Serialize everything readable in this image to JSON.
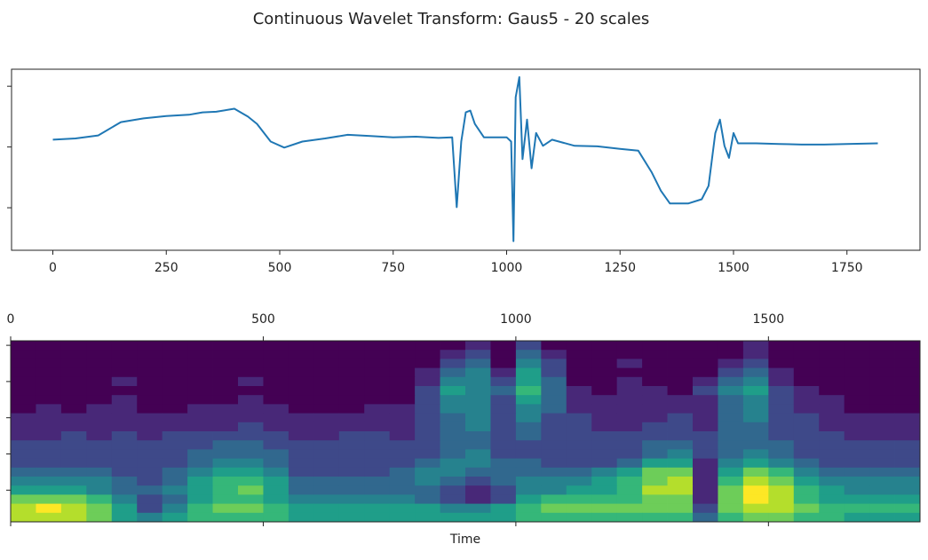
{
  "chart_data": [
    {
      "type": "line",
      "title": "Continuous Wavelet Transform: Gaus5 - 20 scales",
      "xlim": [
        -91,
        1911
      ],
      "xticks": [
        0,
        250,
        500,
        750,
        1000,
        1250,
        1500,
        1750
      ],
      "ylim": [
        -1.7,
        1.28
      ],
      "yticks": [
        -1,
        0,
        1
      ],
      "ytick_labels": false,
      "series": [
        {
          "color": "#1f77b4",
          "x": [
            0,
            50,
            100,
            150,
            200,
            250,
            300,
            330,
            360,
            400,
            430,
            450,
            480,
            510,
            550,
            600,
            650,
            700,
            750,
            800,
            850,
            880,
            890,
            900,
            910,
            920,
            930,
            950,
            1000,
            1010,
            1015,
            1020,
            1028,
            1035,
            1045,
            1055,
            1065,
            1080,
            1100,
            1150,
            1200,
            1250,
            1290,
            1320,
            1340,
            1360,
            1400,
            1430,
            1445,
            1460,
            1470,
            1480,
            1490,
            1500,
            1510,
            1550,
            1600,
            1650,
            1700,
            1750,
            1818
          ],
          "values": [
            0.12,
            0.14,
            0.19,
            0.41,
            0.47,
            0.51,
            0.53,
            0.57,
            0.58,
            0.63,
            0.5,
            0.38,
            0.09,
            -0.01,
            0.09,
            0.14,
            0.2,
            0.18,
            0.16,
            0.17,
            0.15,
            0.16,
            -0.99,
            0.09,
            0.57,
            0.6,
            0.38,
            0.16,
            0.16,
            0.09,
            -1.55,
            0.82,
            1.15,
            -0.2,
            0.45,
            -0.35,
            0.23,
            0.02,
            0.12,
            0.02,
            0.01,
            -0.03,
            -0.06,
            -0.42,
            -0.72,
            -0.93,
            -0.93,
            -0.86,
            -0.64,
            0.23,
            0.45,
            0.02,
            -0.18,
            0.23,
            0.06,
            0.06,
            0.05,
            0.04,
            0.04,
            0.05,
            0.06
          ]
        }
      ]
    },
    {
      "type": "heatmap",
      "xlabel": "Time",
      "xaxis": "top",
      "xlim": [
        0,
        1800
      ],
      "xticks": [
        0,
        500,
        1000,
        1500
      ],
      "ylim": [
        19.5,
        -0.5
      ],
      "yticks": [
        0,
        4,
        8,
        12,
        16
      ],
      "ytick_labels": false,
      "xbins": [
        0,
        50,
        100,
        150,
        200,
        250,
        300,
        350,
        400,
        450,
        500,
        550,
        600,
        650,
        700,
        750,
        800,
        850,
        900,
        950,
        1000,
        1050,
        1100,
        1150,
        1200,
        1250,
        1300,
        1350,
        1400,
        1450,
        1500,
        1550,
        1600,
        1650,
        1700,
        1750,
        1800
      ],
      "z": [
        [
          1,
          1,
          1,
          1,
          1,
          1,
          1,
          1,
          1,
          1,
          1,
          1,
          1,
          1,
          1,
          1,
          1,
          1,
          2,
          1,
          3,
          1,
          1,
          1,
          1,
          1,
          1,
          1,
          1,
          2,
          1,
          1,
          1,
          1,
          1,
          1
        ],
        [
          1,
          1,
          1,
          1,
          1,
          1,
          1,
          1,
          1,
          1,
          1,
          1,
          1,
          1,
          1,
          1,
          1,
          2,
          3,
          1,
          4,
          2,
          1,
          1,
          1,
          1,
          1,
          1,
          1,
          2,
          1,
          1,
          1,
          1,
          1,
          1
        ],
        [
          1,
          1,
          1,
          1,
          1,
          1,
          1,
          1,
          1,
          1,
          1,
          1,
          1,
          1,
          1,
          1,
          1,
          3,
          4,
          1,
          5,
          3,
          1,
          1,
          2,
          1,
          1,
          1,
          2,
          3,
          1,
          1,
          1,
          1,
          1,
          1
        ],
        [
          1,
          1,
          1,
          1,
          1,
          1,
          1,
          1,
          1,
          1,
          1,
          1,
          1,
          1,
          1,
          1,
          2,
          4,
          5,
          2,
          6,
          3,
          1,
          1,
          1,
          1,
          1,
          1,
          3,
          4,
          2,
          1,
          1,
          1,
          1,
          1
        ],
        [
          1,
          1,
          1,
          1,
          2,
          1,
          1,
          1,
          1,
          2,
          1,
          1,
          1,
          1,
          1,
          1,
          2,
          5,
          5,
          3,
          6,
          4,
          1,
          1,
          2,
          1,
          1,
          2,
          4,
          5,
          2,
          1,
          1,
          1,
          1,
          1
        ],
        [
          1,
          1,
          1,
          1,
          1,
          1,
          1,
          1,
          1,
          1,
          1,
          1,
          1,
          1,
          1,
          1,
          3,
          6,
          5,
          4,
          7,
          4,
          2,
          1,
          2,
          2,
          1,
          3,
          5,
          6,
          3,
          2,
          1,
          1,
          1,
          1
        ],
        [
          1,
          1,
          1,
          1,
          2,
          1,
          1,
          1,
          1,
          2,
          1,
          1,
          1,
          1,
          1,
          1,
          3,
          5,
          5,
          3,
          6,
          4,
          2,
          2,
          2,
          2,
          2,
          2,
          4,
          5,
          3,
          2,
          2,
          1,
          1,
          1
        ],
        [
          1,
          2,
          1,
          2,
          2,
          1,
          1,
          2,
          2,
          2,
          2,
          1,
          1,
          1,
          2,
          2,
          3,
          5,
          5,
          3,
          5,
          4,
          2,
          2,
          2,
          2,
          2,
          2,
          4,
          5,
          3,
          2,
          2,
          1,
          1,
          1
        ],
        [
          2,
          2,
          2,
          2,
          2,
          2,
          2,
          2,
          2,
          2,
          2,
          2,
          2,
          2,
          2,
          2,
          3,
          4,
          5,
          3,
          5,
          3,
          3,
          2,
          2,
          2,
          3,
          2,
          4,
          5,
          3,
          3,
          2,
          2,
          2,
          2
        ],
        [
          2,
          2,
          2,
          2,
          2,
          2,
          2,
          2,
          2,
          3,
          2,
          2,
          2,
          2,
          2,
          2,
          3,
          4,
          5,
          3,
          4,
          3,
          3,
          2,
          2,
          3,
          3,
          2,
          4,
          4,
          3,
          3,
          2,
          2,
          2,
          2
        ],
        [
          2,
          2,
          3,
          2,
          3,
          2,
          3,
          3,
          3,
          3,
          3,
          2,
          2,
          3,
          3,
          2,
          3,
          4,
          4,
          3,
          4,
          3,
          3,
          3,
          3,
          3,
          3,
          3,
          4,
          4,
          3,
          3,
          3,
          2,
          2,
          2
        ],
        [
          3,
          3,
          3,
          3,
          3,
          3,
          3,
          3,
          4,
          4,
          3,
          3,
          3,
          3,
          3,
          3,
          3,
          4,
          4,
          3,
          3,
          3,
          3,
          3,
          3,
          4,
          4,
          3,
          4,
          4,
          4,
          3,
          3,
          3,
          3,
          3
        ],
        [
          3,
          3,
          3,
          3,
          3,
          3,
          3,
          4,
          4,
          4,
          4,
          3,
          3,
          3,
          3,
          3,
          3,
          4,
          5,
          3,
          3,
          3,
          3,
          3,
          3,
          4,
          5,
          3,
          4,
          5,
          4,
          3,
          3,
          3,
          3,
          3
        ],
        [
          3,
          3,
          3,
          3,
          3,
          3,
          3,
          4,
          5,
          5,
          4,
          3,
          3,
          3,
          3,
          3,
          4,
          5,
          5,
          4,
          4,
          3,
          3,
          3,
          4,
          6,
          6,
          2,
          5,
          6,
          5,
          4,
          3,
          3,
          3,
          3
        ],
        [
          4,
          4,
          4,
          4,
          3,
          3,
          4,
          5,
          6,
          6,
          5,
          3,
          3,
          3,
          3,
          4,
          5,
          5,
          4,
          4,
          4,
          4,
          4,
          5,
          6,
          8,
          8,
          2,
          6,
          8,
          7,
          5,
          4,
          4,
          4,
          4
        ],
        [
          5,
          5,
          5,
          5,
          4,
          3,
          4,
          6,
          7,
          7,
          6,
          4,
          4,
          4,
          4,
          4,
          5,
          4,
          3,
          4,
          5,
          5,
          5,
          6,
          7,
          8,
          9,
          2,
          7,
          9,
          8,
          6,
          5,
          5,
          5,
          5
        ],
        [
          6,
          6,
          6,
          5,
          4,
          4,
          5,
          6,
          7,
          8,
          6,
          4,
          4,
          4,
          4,
          4,
          4,
          3,
          2,
          3,
          5,
          5,
          6,
          6,
          7,
          9,
          9,
          2,
          8,
          10,
          9,
          7,
          6,
          5,
          5,
          5
        ],
        [
          8,
          8,
          8,
          7,
          5,
          3,
          4,
          6,
          7,
          7,
          6,
          5,
          5,
          5,
          5,
          5,
          4,
          3,
          2,
          3,
          6,
          7,
          7,
          7,
          7,
          8,
          8,
          2,
          8,
          10,
          9,
          7,
          6,
          6,
          6,
          6
        ],
        [
          9,
          10,
          9,
          8,
          6,
          3,
          5,
          7,
          8,
          8,
          7,
          6,
          6,
          6,
          6,
          6,
          6,
          5,
          5,
          6,
          7,
          8,
          8,
          8,
          8,
          8,
          8,
          3,
          8,
          9,
          9,
          8,
          7,
          7,
          7,
          7
        ],
        [
          9,
          9,
          9,
          8,
          6,
          5,
          6,
          7,
          7,
          7,
          7,
          6,
          6,
          6,
          6,
          6,
          6,
          6,
          6,
          6,
          7,
          7,
          7,
          7,
          7,
          7,
          7,
          4,
          7,
          8,
          8,
          7,
          7,
          6,
          6,
          6
        ]
      ]
    }
  ]
}
